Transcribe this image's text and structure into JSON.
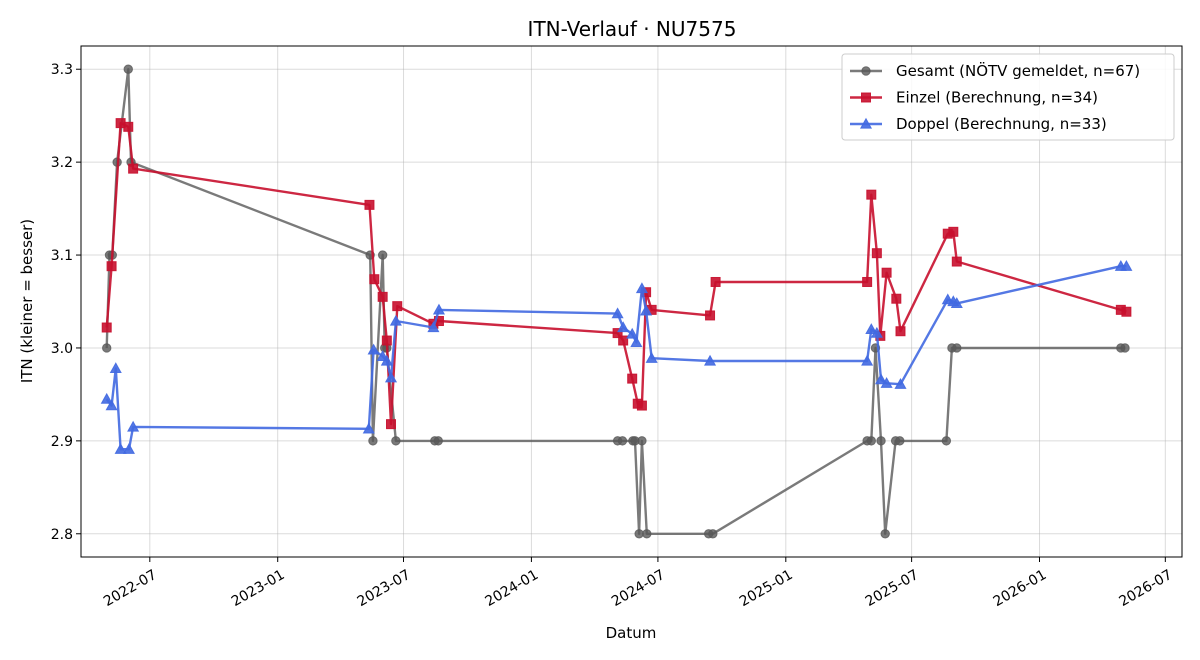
{
  "chart_data": {
    "type": "line",
    "title": "ITN-Verlauf · NU7575",
    "xlabel": "Datum",
    "ylabel": "ITN  (kleiner = besser)",
    "xlim": [
      "2022-03-24",
      "2026-07-25"
    ],
    "ylim": [
      2.775,
      3.325
    ],
    "x_ticks": [
      "2022-07",
      "2023-01",
      "2023-07",
      "2024-01",
      "2024-07",
      "2025-01",
      "2025-07",
      "2026-01",
      "2026-07"
    ],
    "y_ticks": [
      "2.8",
      "2.9",
      "3.0",
      "3.1",
      "3.2",
      "3.3"
    ],
    "grid": true,
    "legend_position": "top-right",
    "series": [
      {
        "name": "Gesamt (NÖTV gemeldet, n=67)",
        "color": "#595959",
        "marker": "circle",
        "points": [
          [
            "2022-04-30",
            3.0
          ],
          [
            "2022-05-04",
            3.1
          ],
          [
            "2022-05-08",
            3.1
          ],
          [
            "2022-05-15",
            3.2
          ],
          [
            "2022-05-31",
            3.3
          ],
          [
            "2022-06-04",
            3.2
          ],
          [
            "2023-05-14",
            3.1
          ],
          [
            "2023-05-18",
            2.9
          ],
          [
            "2023-06-01",
            3.1
          ],
          [
            "2023-06-04",
            3.0
          ],
          [
            "2023-06-07",
            3.0
          ],
          [
            "2023-06-20",
            2.9
          ],
          [
            "2023-08-15",
            2.9
          ],
          [
            "2023-08-20",
            2.9
          ],
          [
            "2024-05-04",
            2.9
          ],
          [
            "2024-05-11",
            2.9
          ],
          [
            "2024-05-26",
            2.9
          ],
          [
            "2024-05-29",
            2.9
          ],
          [
            "2024-06-04",
            2.8
          ],
          [
            "2024-06-08",
            2.9
          ],
          [
            "2024-06-15",
            2.8
          ],
          [
            "2024-09-12",
            2.8
          ],
          [
            "2024-09-18",
            2.8
          ],
          [
            "2025-04-28",
            2.9
          ],
          [
            "2025-05-04",
            2.9
          ],
          [
            "2025-05-10",
            3.0
          ],
          [
            "2025-05-18",
            2.9
          ],
          [
            "2025-05-24",
            2.8
          ],
          [
            "2025-06-08",
            2.9
          ],
          [
            "2025-06-14",
            2.9
          ],
          [
            "2025-08-20",
            2.9
          ],
          [
            "2025-08-28",
            3.0
          ],
          [
            "2025-09-04",
            3.0
          ],
          [
            "2026-04-28",
            3.0
          ],
          [
            "2026-05-04",
            3.0
          ]
        ]
      },
      {
        "name": "Einzel (Berechnung, n=34)",
        "color": "#c8102e",
        "marker": "square",
        "points": [
          [
            "2022-04-30",
            3.022
          ],
          [
            "2022-05-07",
            3.088
          ],
          [
            "2022-05-20",
            3.242
          ],
          [
            "2022-05-31",
            3.238
          ],
          [
            "2022-06-07",
            3.193
          ],
          [
            "2023-05-13",
            3.154
          ],
          [
            "2023-05-20",
            3.074
          ],
          [
            "2023-06-01",
            3.055
          ],
          [
            "2023-06-07",
            3.008
          ],
          [
            "2023-06-13",
            2.918
          ],
          [
            "2023-06-22",
            3.045
          ],
          [
            "2023-08-13",
            3.026
          ],
          [
            "2023-08-21",
            3.029
          ],
          [
            "2024-05-04",
            3.016
          ],
          [
            "2024-05-12",
            3.008
          ],
          [
            "2024-05-25",
            2.967
          ],
          [
            "2024-06-02",
            2.94
          ],
          [
            "2024-06-08",
            2.938
          ],
          [
            "2024-06-14",
            3.06
          ],
          [
            "2024-06-22",
            3.041
          ],
          [
            "2024-09-14",
            3.035
          ],
          [
            "2024-09-22",
            3.071
          ],
          [
            "2025-04-28",
            3.071
          ],
          [
            "2025-05-04",
            3.165
          ],
          [
            "2025-05-12",
            3.102
          ],
          [
            "2025-05-17",
            3.013
          ],
          [
            "2025-05-26",
            3.081
          ],
          [
            "2025-06-09",
            3.053
          ],
          [
            "2025-06-15",
            3.018
          ],
          [
            "2025-08-22",
            3.123
          ],
          [
            "2025-08-30",
            3.125
          ],
          [
            "2025-09-04",
            3.093
          ],
          [
            "2026-04-28",
            3.041
          ],
          [
            "2026-05-06",
            3.039
          ]
        ]
      },
      {
        "name": "Doppel (Berechnung, n=33)",
        "color": "#4169e1",
        "marker": "triangle",
        "points": [
          [
            "2022-04-30",
            2.945
          ],
          [
            "2022-05-07",
            2.938
          ],
          [
            "2022-05-13",
            2.978
          ],
          [
            "2022-05-20",
            2.891
          ],
          [
            "2022-06-01",
            2.891
          ],
          [
            "2022-06-07",
            2.915
          ],
          [
            "2023-05-12",
            2.913
          ],
          [
            "2023-05-19",
            2.998
          ],
          [
            "2023-06-01",
            2.991
          ],
          [
            "2023-06-07",
            2.986
          ],
          [
            "2023-06-13",
            2.968
          ],
          [
            "2023-06-20",
            3.029
          ],
          [
            "2023-08-13",
            3.022
          ],
          [
            "2023-08-21",
            3.041
          ],
          [
            "2024-05-04",
            3.037
          ],
          [
            "2024-05-12",
            3.022
          ],
          [
            "2024-05-25",
            3.015
          ],
          [
            "2024-05-31",
            3.006
          ],
          [
            "2024-06-08",
            3.064
          ],
          [
            "2024-06-14",
            3.04
          ],
          [
            "2024-06-22",
            2.989
          ],
          [
            "2024-09-14",
            2.986
          ],
          [
            "2025-04-28",
            2.986
          ],
          [
            "2025-05-04",
            3.02
          ],
          [
            "2025-05-12",
            3.016
          ],
          [
            "2025-05-18",
            2.966
          ],
          [
            "2025-05-26",
            2.962
          ],
          [
            "2025-06-15",
            2.961
          ],
          [
            "2025-08-22",
            3.052
          ],
          [
            "2025-08-30",
            3.05
          ],
          [
            "2025-09-04",
            3.048
          ],
          [
            "2026-04-28",
            3.088
          ],
          [
            "2026-05-06",
            3.088
          ]
        ]
      }
    ]
  }
}
